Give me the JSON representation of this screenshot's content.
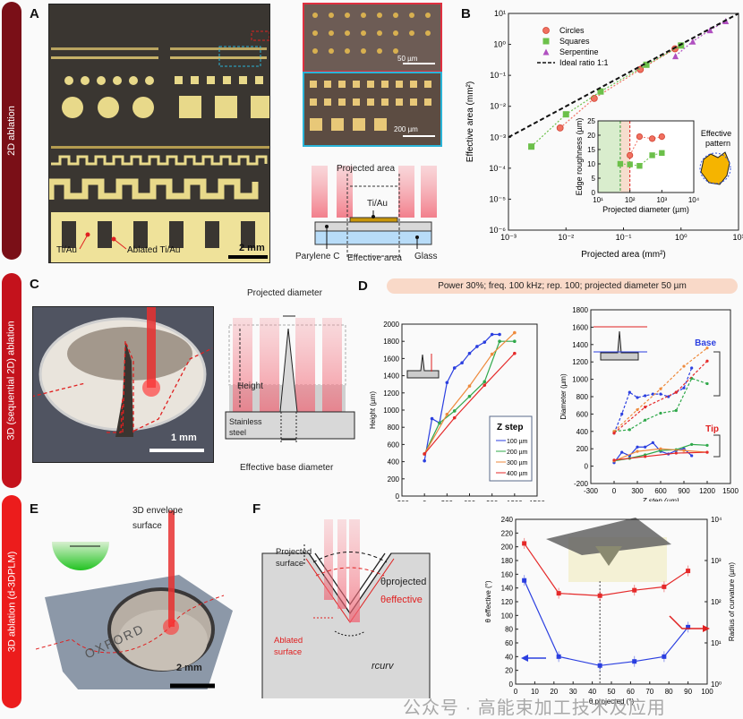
{
  "side_labels": [
    {
      "text": "2D ablation",
      "color": "#7a0f17"
    },
    {
      "text": "3D (sequential 2D) ablation",
      "color": "#c4121c"
    },
    {
      "text": "3D ablation (d-3DPLM)",
      "color": "#ec1c1c"
    }
  ],
  "panels": {
    "A": {
      "label": "A",
      "ti_au": "Ti/Au",
      "ablated": "Ablated Ti/Au",
      "scale": "2 mm",
      "zoom1_scale": "50 µm",
      "zoom2_scale": "200 µm",
      "schematic": {
        "projected_area": "Projected area",
        "ti_au": "Ti/Au",
        "parylene": "Parylene C",
        "effective_area": "Effective area",
        "glass": "Glass"
      }
    },
    "B": {
      "label": "B"
    },
    "C": {
      "label": "C",
      "scale": "1 mm",
      "projected_diameter": "Projected diameter",
      "height": "Height",
      "stainless": "Stainless",
      "steel": "steel",
      "effective_base": "Effective base diameter"
    },
    "D": {
      "label": "D",
      "banner": "Power 30%; freq. 100 kHz;  rep. 100; projected diameter 50 µm",
      "base_label": "Base",
      "tip_label": "Tip"
    },
    "E": {
      "label": "E",
      "envelope": "3D envelope",
      "surface": "surface",
      "scale": "2 mm",
      "engraving": "OXFORD"
    },
    "F": {
      "label": "F",
      "projected_surface_1": "Projected",
      "projected_surface_2": "surface",
      "theta_projected": "θprojected",
      "theta_effective": "θeffective",
      "ablated_1": "Ablated",
      "ablated_2": "surface",
      "r_curv": "rcurv"
    }
  },
  "watermark": "公众号 · 高能束加工技术及应用",
  "chart_data": [
    {
      "id": "B-main",
      "type": "scatter",
      "xscale": "log",
      "yscale": "log",
      "xlabel": "Projected area (mm²)",
      "ylabel": "Effective area (mm²)",
      "xlim": [
        0.001,
        10
      ],
      "ylim": [
        1e-06,
        10
      ],
      "xticks": [
        "10⁻³",
        "10⁻²",
        "10⁻¹",
        "10⁰",
        "10¹"
      ],
      "yticks": [
        "10⁻⁶",
        "10⁻⁵",
        "10⁻⁴",
        "10⁻³",
        "10⁻²",
        "10⁻¹",
        "10⁰",
        "10¹"
      ],
      "legend": "top-left",
      "series": [
        {
          "name": "Circles",
          "color": "#f07060",
          "marker": "circle",
          "x": [
            0.0079,
            0.031,
            0.196,
            0.785
          ],
          "y": [
            0.002,
            0.018,
            0.155,
            0.72
          ]
        },
        {
          "name": "Squares",
          "color": "#6cc04a",
          "marker": "square",
          "x": [
            0.0025,
            0.01,
            0.04,
            0.25,
            1.0
          ],
          "y": [
            0.0005,
            0.0055,
            0.03,
            0.22,
            0.92
          ]
        },
        {
          "name": "Serpentine",
          "color": "#b050c0",
          "marker": "triangle",
          "x": [
            0.8,
            1.6,
            3.2,
            6.0
          ],
          "y": [
            0.42,
            1.25,
            2.9,
            5.7
          ]
        },
        {
          "name": "Ideal ratio 1:1",
          "color": "#111111",
          "marker": "dash",
          "x": [
            0.001,
            10
          ],
          "y": [
            0.001,
            10
          ]
        }
      ]
    },
    {
      "id": "B-inset",
      "type": "scatter",
      "xscale": "log",
      "xlabel": "Projected diameter (µm)",
      "ylabel": "Edge roughness (µm)",
      "xlim": [
        10,
        10000
      ],
      "ylim": [
        0,
        25
      ],
      "xticks": [
        "10¹",
        "10²",
        "10³",
        "10⁴"
      ],
      "yticks": [
        "0",
        "5",
        "10",
        "15",
        "20",
        "25"
      ],
      "annotation": "Effective pattern",
      "series": [
        {
          "name": "Circles",
          "color": "#f07060",
          "x": [
            100,
            200,
            500,
            1000
          ],
          "y": [
            13,
            19.5,
            18.8,
            19.5
          ]
        },
        {
          "name": "Squares",
          "color": "#6cc04a",
          "x": [
            50,
            100,
            200,
            500,
            1000
          ],
          "y": [
            10,
            9.8,
            9.3,
            13,
            13.8
          ]
        }
      ]
    },
    {
      "id": "D-height",
      "type": "line",
      "xlabel": "Z step (µm)",
      "ylabel": "Height (µm)",
      "xlim": [
        -300,
        1500
      ],
      "ylim": [
        0,
        2000
      ],
      "xticks": [
        "-300",
        "0",
        "300",
        "600",
        "900",
        "1200",
        "1500"
      ],
      "yticks": [
        "0",
        "200",
        "400",
        "600",
        "800",
        "1000",
        "1200",
        "1400",
        "1600",
        "1800",
        "2000"
      ],
      "legend_title": "Z step",
      "legend": "bottom-right",
      "series": [
        {
          "name": "100 µm",
          "color": "#2b3fe0",
          "x": [
            0,
            100,
            200,
            300,
            400,
            500,
            600,
            700,
            800,
            900,
            1000
          ],
          "y": [
            410,
            900,
            850,
            1320,
            1490,
            1550,
            1660,
            1740,
            1790,
            1880,
            1880
          ]
        },
        {
          "name": "200 µm",
          "color": "#2fa84a",
          "x": [
            0,
            200,
            400,
            600,
            800,
            1000,
            1200
          ],
          "y": [
            490,
            850,
            990,
            1160,
            1330,
            1800,
            1800
          ]
        },
        {
          "name": "300 µm",
          "color": "#ee8a3c",
          "x": [
            0,
            300,
            600,
            900,
            1200
          ],
          "y": [
            490,
            950,
            1280,
            1650,
            1900
          ]
        },
        {
          "name": "400 µm",
          "color": "#e52a2a",
          "x": [
            0,
            400,
            800,
            1200
          ],
          "y": [
            490,
            910,
            1290,
            1660
          ]
        }
      ]
    },
    {
      "id": "D-diameter",
      "type": "line",
      "xlabel": "Z step (µm)",
      "ylabel": "Diameter (µm)",
      "xlim": [
        -300,
        1500
      ],
      "ylim": [
        -200,
        1800
      ],
      "xticks": [
        "-300",
        "0",
        "300",
        "600",
        "900",
        "1200",
        "1500"
      ],
      "yticks": [
        "-200",
        "0",
        "200",
        "400",
        "600",
        "800",
        "1000",
        "1200",
        "1400",
        "1600",
        "1800"
      ],
      "series": [
        {
          "name": "100 µm base",
          "color": "#2b3fe0",
          "dashed": true,
          "x": [
            0,
            100,
            200,
            300,
            400,
            500,
            600,
            700,
            800,
            900,
            1000
          ],
          "y": [
            380,
            600,
            850,
            790,
            810,
            830,
            830,
            800,
            850,
            900,
            1130
          ]
        },
        {
          "name": "200 µm base",
          "color": "#2fa84a",
          "dashed": true,
          "x": [
            0,
            200,
            400,
            600,
            800,
            1000,
            1200
          ],
          "y": [
            400,
            420,
            530,
            610,
            640,
            1010,
            950
          ]
        },
        {
          "name": "300 µm base",
          "color": "#ee8a3c",
          "dashed": true,
          "x": [
            0,
            300,
            600,
            900,
            1200
          ],
          "y": [
            400,
            650,
            890,
            1150,
            1360
          ]
        },
        {
          "name": "400 µm base",
          "color": "#e52a2a",
          "dashed": true,
          "x": [
            0,
            400,
            800,
            1200
          ],
          "y": [
            380,
            680,
            850,
            1210
          ]
        },
        {
          "name": "100 µm tip",
          "color": "#2b3fe0",
          "x": [
            0,
            100,
            200,
            300,
            400,
            500,
            600,
            700,
            800,
            900,
            1000
          ],
          "y": [
            40,
            160,
            120,
            220,
            220,
            270,
            170,
            140,
            180,
            200,
            120
          ]
        },
        {
          "name": "200 µm tip",
          "color": "#2fa84a",
          "x": [
            0,
            200,
            400,
            600,
            800,
            1000,
            1200
          ],
          "y": [
            60,
            90,
            130,
            180,
            190,
            250,
            240
          ]
        },
        {
          "name": "300 µm tip",
          "color": "#ee8a3c",
          "x": [
            0,
            300,
            600,
            900,
            1200
          ],
          "y": [
            60,
            170,
            200,
            180,
            160
          ]
        },
        {
          "name": "400 µm tip",
          "color": "#e52a2a",
          "x": [
            0,
            400,
            800,
            1200
          ],
          "y": [
            70,
            110,
            150,
            160
          ]
        }
      ]
    },
    {
      "id": "F-angle",
      "type": "line",
      "xlabel": "θ projected (°)",
      "ylabel": "θ effective (°)",
      "y2label": "Radius of curvature (µm)",
      "xlim": [
        0,
        100
      ],
      "ylim": [
        0,
        240
      ],
      "y2lim": [
        1,
        10000
      ],
      "y2scale": "log",
      "xticks": [
        "0",
        "10",
        "20",
        "30",
        "40",
        "50",
        "60",
        "70",
        "80",
        "90",
        "100"
      ],
      "yticks": [
        "0",
        "20",
        "40",
        "60",
        "80",
        "100",
        "120",
        "140",
        "160",
        "180",
        "200",
        "220",
        "240"
      ],
      "y2ticks": [
        "10⁰",
        "10¹",
        "10²",
        "10³",
        "10⁴"
      ],
      "series": [
        {
          "name": "θ effective",
          "axis": "left",
          "color": "#2b3fe0",
          "x": [
            4.5,
            22.5,
            44,
            62,
            77.5,
            90
          ],
          "y": [
            151,
            40,
            27,
            33,
            40,
            83
          ]
        },
        {
          "name": "Radius of curvature",
          "axis": "right",
          "color": "#e52a2a",
          "x": [
            4.5,
            22.5,
            44,
            62,
            77.5,
            90
          ],
          "y": [
            2600,
            160,
            140,
            190,
            230,
            560
          ]
        }
      ]
    }
  ]
}
